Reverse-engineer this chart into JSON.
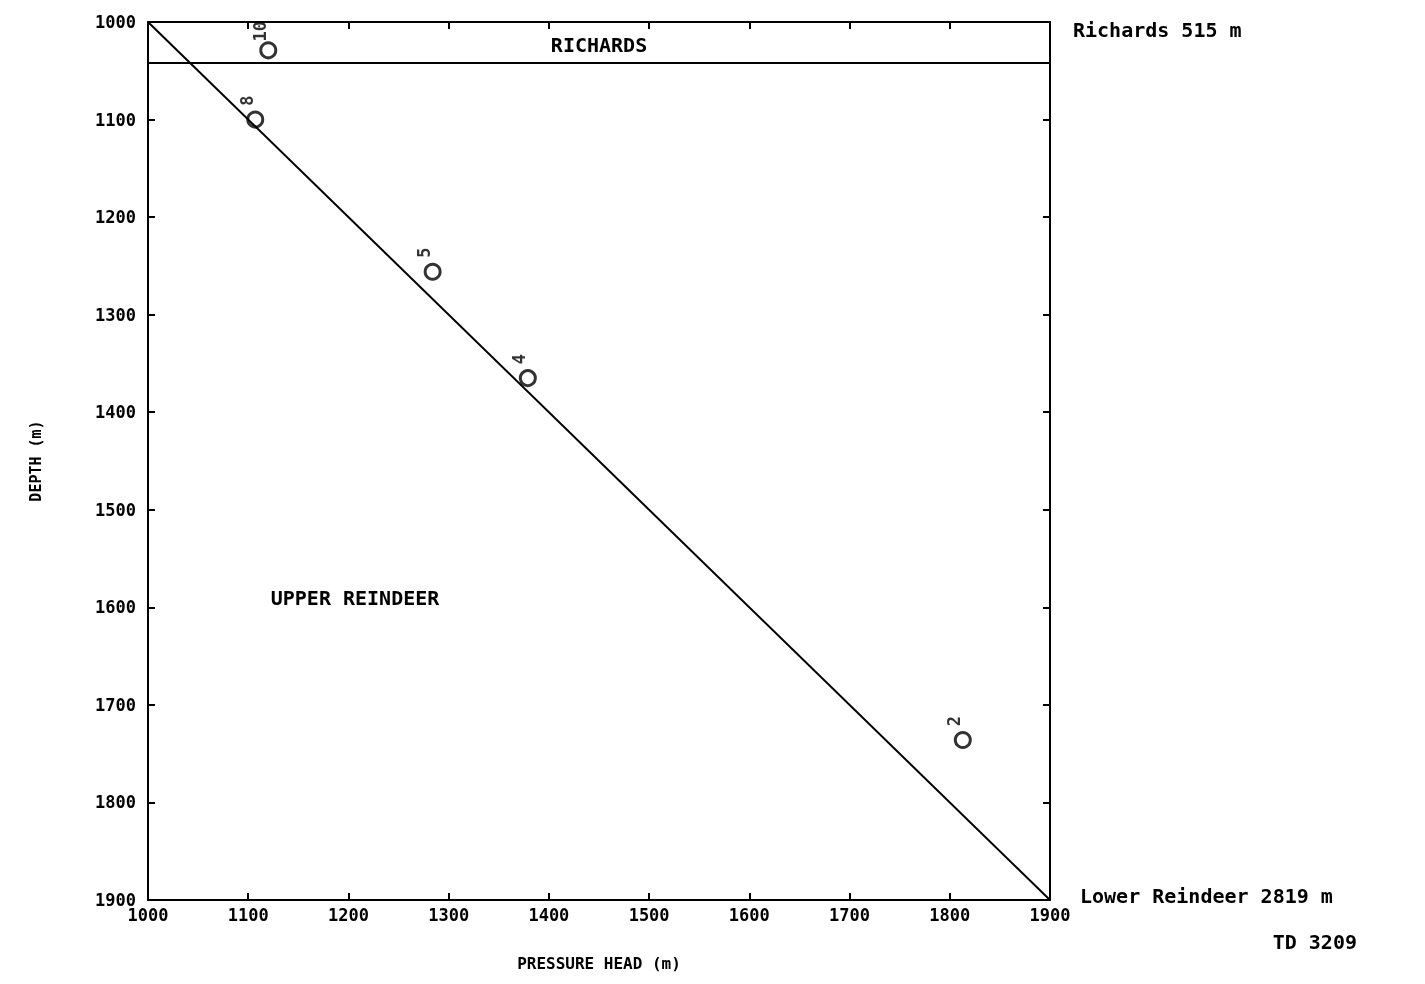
{
  "chart_data": {
    "type": "scatter",
    "xlabel": "PRESSURE HEAD (m)",
    "ylabel": "DEPTH (m)",
    "xlim": [
      1000,
      1900
    ],
    "xticks": [
      1000,
      1100,
      1200,
      1300,
      1400,
      1500,
      1600,
      1700,
      1800,
      1900
    ],
    "ylim": [
      1900,
      1000
    ],
    "yticks": [
      1000,
      1100,
      1200,
      1300,
      1400,
      1500,
      1600,
      1700,
      1800,
      1900
    ],
    "grid": false,
    "marker": "circle",
    "series": [
      {
        "name": "10",
        "color": "#000000",
        "x": [
          1120
        ],
        "values": [
          1029
        ]
      },
      {
        "name": "8",
        "color": "#000000",
        "x": [
          1107
        ],
        "values": [
          1100
        ]
      },
      {
        "name": "5",
        "color": "#000000",
        "x": [
          1284
        ],
        "values": [
          1256
        ]
      },
      {
        "name": "4",
        "color": "#000000",
        "x": [
          1379
        ],
        "values": [
          1365
        ]
      },
      {
        "name": "2",
        "color": "#000000",
        "x": [
          1813
        ],
        "values": [
          1736
        ]
      },
      {
        "type": "line",
        "color": "#000000",
        "marker": "none",
        "line_style": "solid",
        "x": [
          1000,
          1900
        ],
        "values": [
          1000,
          1900
        ]
      }
    ],
    "ref_lines": [
      {
        "axis": "y",
        "value": 1042,
        "label": "RICHARDS"
      }
    ],
    "annotations": [
      "Richards 515 m",
      "Lower Reindeer 2819 m",
      "TD 3209",
      "UPPER REINDEER"
    ]
  }
}
